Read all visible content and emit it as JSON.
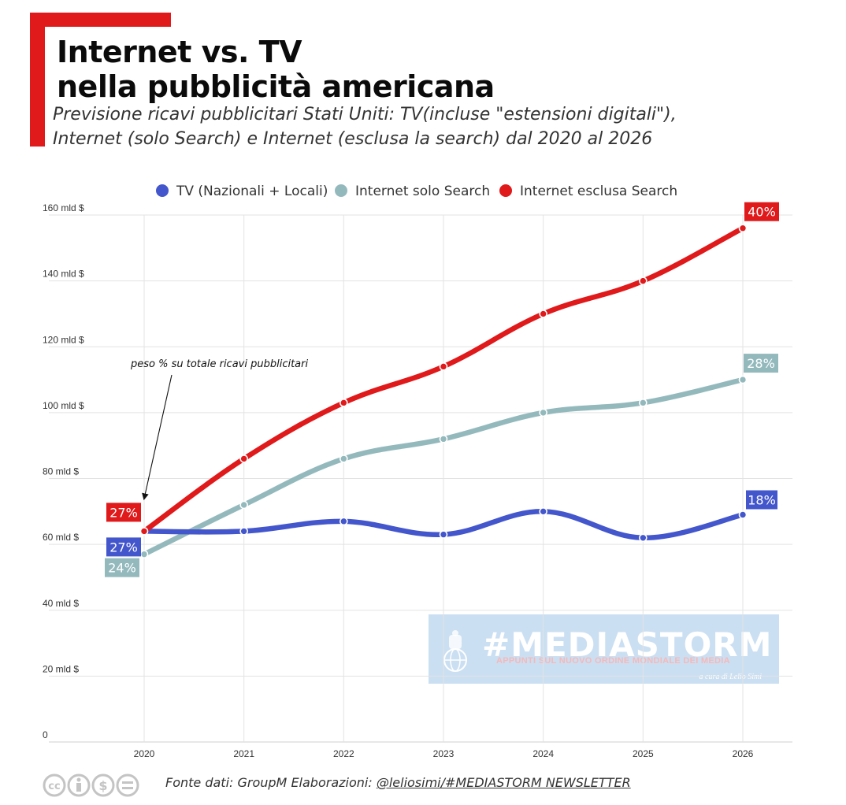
{
  "header": {
    "title_line1": "Internet vs. TV",
    "title_line2": "nella pubblicità americana",
    "subtitle_line1": "Previsione ricavi pubblicitari Stati Uniti: TV(incluse \"estensioni digitali\"),",
    "subtitle_line2": "Internet (solo Search) e Internet (esclusa la search) dal 2020 al 2026"
  },
  "chart_data": {
    "type": "line",
    "x": [
      "2020",
      "2021",
      "2022",
      "2023",
      "2024",
      "2025",
      "2026"
    ],
    "ylim": [
      0,
      160
    ],
    "yticks": [
      0,
      20,
      40,
      60,
      80,
      100,
      120,
      140,
      160
    ],
    "ytick_labels": [
      "0",
      "20 mld $",
      "40 mld $",
      "60 mld $",
      "80 mld $",
      "100 mld $",
      "120 mld $",
      "140 mld $",
      "160 mld $"
    ],
    "grid": true,
    "legend_position": "top-center",
    "series": [
      {
        "name": "TV (Nazionali + Locali)",
        "color": "#4356cc",
        "values": [
          64,
          64,
          67,
          63,
          70,
          62,
          69
        ],
        "start_label": "27%",
        "end_label": "18%"
      },
      {
        "name": "Internet solo Search",
        "color": "#94b9bd",
        "values": [
          57,
          72,
          86,
          92,
          100,
          103,
          110
        ],
        "start_label": "24%",
        "end_label": "28%"
      },
      {
        "name": "Internet esclusa Search",
        "color": "#e0191b",
        "values": [
          64,
          86,
          103,
          114,
          130,
          140,
          156
        ],
        "start_label": "27%",
        "end_label": "40%"
      }
    ],
    "annotation": "peso % su totale ricavi pubblicitari"
  },
  "watermark": {
    "title": "#MEDIASTORM",
    "subtitle": "APPUNTI SUL NUOVO ORDINE MONDIALE DEI MEDIA",
    "credit": "a cura di Lelio Simi"
  },
  "footer": {
    "source_prefix": "Fonte dati: GroupM Elaborazioni: ",
    "source_handle": "@leliosimi/#MEDIASTORM NEWSLETTER",
    "license_icons": [
      "cc-icon",
      "by-icon",
      "nc-icon",
      "nd-icon"
    ]
  }
}
